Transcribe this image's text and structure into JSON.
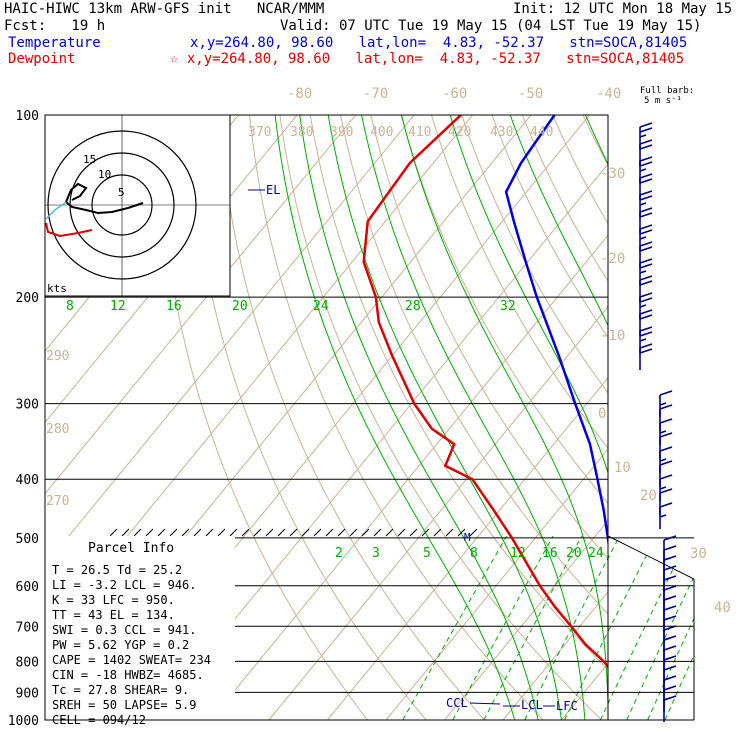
{
  "header": {
    "model": "HAIC-HIWC 13km ARW-GFS init   NCAR/MMM",
    "init": "Init: 12 UTC Mon 18 May 15",
    "fcst": "Fcst:   19 h",
    "valid": "Valid: 07 UTC Tue 19 May 15 (04 LST Tue 19 May 15)",
    "temp_label": "Temperature",
    "temp_info": "x,y=264.80, 98.60   lat,lon=  4.83, -52.37   stn=SOCA,81405",
    "dew_label": "Dewpoint",
    "dew_info": "☆ x,y=264.80, 98.60   lat,lon=  4.83, -52.37   stn=SOCA,81405"
  },
  "barb_legend": {
    "line1": "Full barb:",
    "line2": "5 m s⁻¹"
  },
  "hodograph": {
    "units": "kts",
    "ring_labels": [
      "5",
      "10",
      "15"
    ]
  },
  "parcel_info": {
    "title": "Parcel Info",
    "rows": [
      "T  =   26.5 Td =  25.2",
      "LI =   -3.2 LCL =  946.",
      "K  =     33 LFC =  950.",
      "TT =     43 EL  =  134.",
      "SWI =   0.3 CCL =  941.",
      "PW =   5.62 YGP =   0.2",
      "CAPE =  1402 SWEAT=  234",
      "CIN =   -18 HWBZ= 4685.",
      "Tc =   27.8 SHEAR=   9.",
      "SREH =   50 LAPSE=   5.9",
      "CELL = 094/12"
    ]
  },
  "colors": {
    "temperature": "#0000dd",
    "dewpoint": "#dd0000",
    "isotherm": "#c8b496",
    "mixing_ratio": "#00aa00",
    "isobar": "#000000",
    "barb": "#000088",
    "hodograph_light": "#55bbdd"
  },
  "chart_data": {
    "type": "line",
    "title": "HAIC-HIWC 13km ARW-GFS init",
    "y_axis": {
      "label": "",
      "scale": "log",
      "range": [
        1000,
        100
      ],
      "ticks": [
        100,
        200,
        300,
        400,
        500,
        600,
        700,
        800,
        900,
        1000
      ]
    },
    "isotherm_labels": [
      "-80",
      "-70",
      "-60",
      "-50",
      "-40",
      "-30",
      "-20",
      "-10",
      "0",
      "10",
      "20",
      "30",
      "40"
    ],
    "theta_labels": [
      "370",
      "380",
      "390",
      "400",
      "410",
      "420",
      "430",
      "440"
    ],
    "theta_left_labels": [
      "290",
      "280",
      "270"
    ],
    "theta_e_labels": [
      "8",
      "12",
      "16",
      "20",
      "24",
      "28",
      "32"
    ],
    "mixing_ratio_labels": [
      "2",
      "3",
      "5",
      "8",
      "12",
      "16",
      "20",
      "24"
    ],
    "annotations": {
      "el": "EL",
      "ccl": "CCL",
      "lcl": "LCL",
      "lfc": "LFC",
      "m": "M"
    },
    "series": [
      {
        "name": "Temperature",
        "p": [
          1000,
          950,
          925,
          900,
          850,
          800,
          750,
          700,
          650,
          600,
          550,
          500,
          450,
          400,
          350,
          300,
          250,
          200,
          175,
          150,
          134,
          120,
          100
        ],
        "t": [
          26.5,
          23.3,
          21.8,
          20.4,
          17.8,
          15.1,
          11.7,
          8.2,
          4.5,
          0.6,
          -3.5,
          -7.6,
          -12.2,
          -17.6,
          -23.8,
          -32.0,
          -41.5,
          -53.5,
          -60.3,
          -68.0,
          -73.5,
          -75.0,
          -76.0
        ]
      },
      {
        "name": "Dewpoint",
        "p": [
          1000,
          950,
          925,
          900,
          850,
          800,
          750,
          700,
          650,
          600,
          550,
          500,
          450,
          400,
          380,
          350,
          330,
          300,
          250,
          220,
          200,
          175,
          150,
          120,
          100
        ],
        "t": [
          25.2,
          22.5,
          19.5,
          17.0,
          13.5,
          9.0,
          3.5,
          -1.5,
          -7.0,
          -12.5,
          -18.0,
          -24.0,
          -31.0,
          -39.0,
          -45.5,
          -47.0,
          -53.0,
          -59.5,
          -70.0,
          -77.0,
          -81.0,
          -88.0,
          -93.0,
          -94.0,
          -92.0
        ]
      }
    ]
  }
}
